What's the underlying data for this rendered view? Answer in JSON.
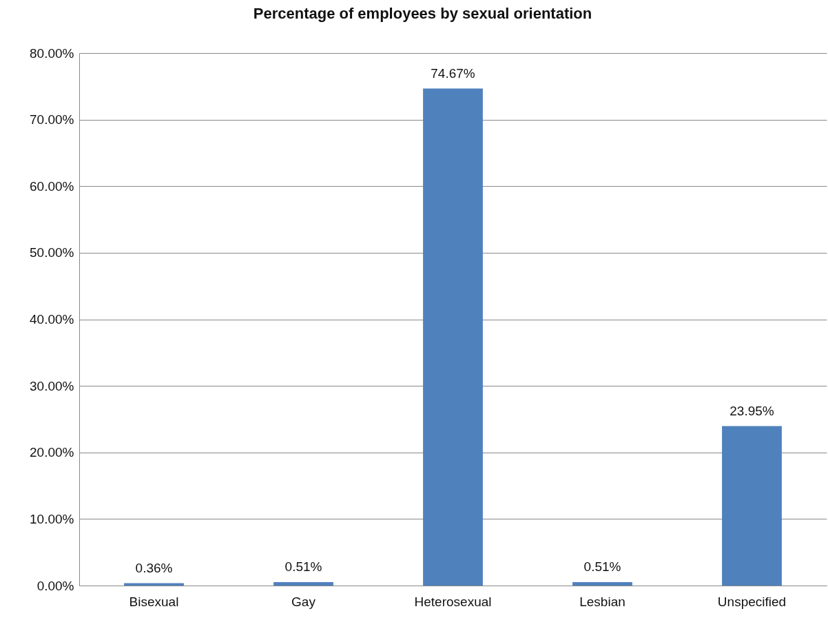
{
  "chart_data": {
    "type": "bar",
    "title": "Percentage of employees by sexual orientation",
    "categories": [
      "Bisexual",
      "Gay",
      "Heterosexual",
      "Lesbian",
      "Unspecified"
    ],
    "values": [
      0.36,
      0.51,
      74.67,
      0.51,
      23.95
    ],
    "color": "#4f81bd",
    "value_labels": [
      "0.36%",
      "0.51%",
      "74.67%",
      "0.51%",
      "23.95%"
    ],
    "ylim": [
      0,
      80
    ],
    "yticks": [
      {
        "value": 0,
        "label": "0.00%"
      },
      {
        "value": 10,
        "label": "10.00%"
      },
      {
        "value": 20,
        "label": "20.00%"
      },
      {
        "value": 30,
        "label": "30.00%"
      },
      {
        "value": 40,
        "label": "40.00%"
      },
      {
        "value": 50,
        "label": "50.00%"
      },
      {
        "value": 60,
        "label": "60.00%"
      },
      {
        "value": 70,
        "label": "70.00%"
      },
      {
        "value": 80,
        "label": "80.00%"
      }
    ],
    "grid": "y"
  }
}
